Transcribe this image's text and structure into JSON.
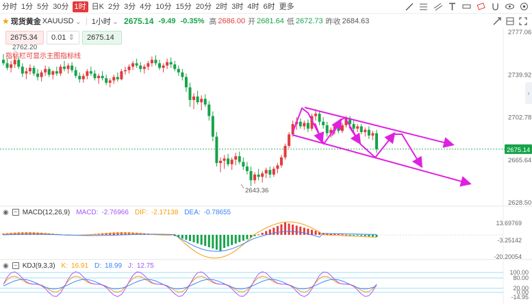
{
  "timeframes": [
    "分时",
    "1分",
    "5分",
    "30分",
    "1时",
    "日K",
    "2分",
    "3分",
    "4分",
    "10分",
    "15分",
    "20分",
    "2时",
    "3时",
    "4时",
    "6时",
    "更多"
  ],
  "active_timeframe": "1时",
  "symbol": {
    "name": "现货黄金",
    "code": "XAUUSD",
    "interval": "1小时",
    "price": "2675.14",
    "change": "-9.49",
    "change_pct": "-0.35%",
    "high_label": "高",
    "high": "2686.00",
    "open_label": "开",
    "open": "2681.64",
    "low_label": "低",
    "low": "2672.73",
    "prev_close_label": "昨收",
    "prev_close": "2684.63"
  },
  "order": {
    "sell": "2675.34",
    "qty": "0.01",
    "buy": "2675.14"
  },
  "hint_text": "指标栏可显示主图指标线",
  "hi_marker": "2762.20",
  "lo_marker": "2643.36",
  "price_axis": [
    "2777.06",
    "2739.92",
    "2702.78",
    "2665.64",
    "2628.50"
  ],
  "current_price_tag": "2675.14",
  "macd": {
    "title": "MACD(12,26,9)",
    "macd_label": "MACD:",
    "macd_val": "-2.76966",
    "dif_label": "DIF:",
    "dif_val": "-2.17138",
    "dea_label": "DEA:",
    "dea_val": "-0.78655",
    "axis": [
      "13.69769",
      "-3.25142",
      "-20.20054"
    ]
  },
  "kdj": {
    "title": "KDJ(9,3,3)",
    "k_label": "K:",
    "k_val": "16.91",
    "d_label": "D:",
    "d_val": "18.99",
    "j_label": "J:",
    "j_val": "12.75",
    "axis": [
      "100.00",
      "80.00",
      "20.00",
      "0.00",
      "-14.95"
    ]
  },
  "colors": {
    "up": "#e33b3b",
    "down": "#16a34a",
    "arrows": "#e020e0",
    "accent": "#e33b3b",
    "star": "#f0a500"
  },
  "chart_data": {
    "type": "candlestick",
    "ohlc": [
      [
        2753,
        2758,
        2748,
        2750
      ],
      [
        2750,
        2754,
        2744,
        2746
      ],
      [
        2746,
        2752,
        2742,
        2749
      ],
      [
        2749,
        2756,
        2746,
        2753
      ],
      [
        2753,
        2755,
        2745,
        2747
      ],
      [
        2747,
        2750,
        2738,
        2741
      ],
      [
        2741,
        2746,
        2736,
        2743
      ],
      [
        2743,
        2749,
        2740,
        2746
      ],
      [
        2746,
        2748,
        2739,
        2741
      ],
      [
        2741,
        2745,
        2735,
        2738
      ],
      [
        2738,
        2744,
        2734,
        2742
      ],
      [
        2742,
        2748,
        2739,
        2745
      ],
      [
        2745,
        2747,
        2738,
        2740
      ],
      [
        2740,
        2744,
        2736,
        2743
      ],
      [
        2743,
        2747,
        2739,
        2741
      ],
      [
        2741,
        2749,
        2739,
        2747
      ],
      [
        2747,
        2752,
        2743,
        2745
      ],
      [
        2745,
        2750,
        2741,
        2748
      ],
      [
        2748,
        2751,
        2742,
        2744
      ],
      [
        2744,
        2747,
        2737,
        2739
      ],
      [
        2739,
        2742,
        2733,
        2736
      ],
      [
        2736,
        2741,
        2733,
        2739
      ],
      [
        2739,
        2745,
        2736,
        2743
      ],
      [
        2743,
        2747,
        2739,
        2741
      ],
      [
        2741,
        2744,
        2735,
        2737
      ],
      [
        2737,
        2741,
        2732,
        2739
      ],
      [
        2739,
        2743,
        2735,
        2737
      ],
      [
        2737,
        2740,
        2731,
        2733
      ],
      [
        2733,
        2737,
        2729,
        2735
      ],
      [
        2735,
        2740,
        2732,
        2738
      ],
      [
        2738,
        2742,
        2734,
        2736
      ],
      [
        2736,
        2745,
        2735,
        2743
      ],
      [
        2743,
        2747,
        2740,
        2744
      ],
      [
        2744,
        2749,
        2741,
        2747
      ],
      [
        2747,
        2752,
        2744,
        2750
      ],
      [
        2750,
        2754,
        2746,
        2748
      ],
      [
        2748,
        2751,
        2742,
        2745
      ],
      [
        2745,
        2749,
        2741,
        2747
      ],
      [
        2747,
        2752,
        2744,
        2750
      ],
      [
        2750,
        2756,
        2747,
        2753
      ],
      [
        2753,
        2757,
        2748,
        2750
      ],
      [
        2750,
        2753,
        2744,
        2746
      ],
      [
        2746,
        2750,
        2742,
        2748
      ],
      [
        2748,
        2754,
        2745,
        2751
      ],
      [
        2751,
        2755,
        2746,
        2749
      ],
      [
        2749,
        2752,
        2743,
        2745
      ],
      [
        2745,
        2748,
        2739,
        2742
      ],
      [
        2742,
        2745,
        2735,
        2738
      ],
      [
        2738,
        2741,
        2725,
        2729
      ],
      [
        2729,
        2733,
        2712,
        2718
      ],
      [
        2718,
        2724,
        2710,
        2721
      ],
      [
        2721,
        2726,
        2714,
        2716
      ],
      [
        2716,
        2722,
        2709,
        2719
      ],
      [
        2719,
        2723,
        2712,
        2714
      ],
      [
        2714,
        2717,
        2700,
        2704
      ],
      [
        2704,
        2708,
        2682,
        2686
      ],
      [
        2686,
        2690,
        2660,
        2663
      ],
      [
        2663,
        2668,
        2655,
        2665
      ],
      [
        2665,
        2670,
        2658,
        2667
      ],
      [
        2667,
        2671,
        2660,
        2662
      ],
      [
        2662,
        2668,
        2657,
        2666
      ],
      [
        2666,
        2672,
        2661,
        2669
      ],
      [
        2669,
        2673,
        2662,
        2664
      ],
      [
        2664,
        2668,
        2657,
        2660
      ],
      [
        2660,
        2664,
        2653,
        2656
      ],
      [
        2656,
        2660,
        2643,
        2648
      ],
      [
        2648,
        2655,
        2645,
        2653
      ],
      [
        2653,
        2658,
        2648,
        2651
      ],
      [
        2651,
        2656,
        2646,
        2654
      ],
      [
        2654,
        2659,
        2650,
        2657
      ],
      [
        2657,
        2660,
        2650,
        2653
      ],
      [
        2653,
        2660,
        2651,
        2658
      ],
      [
        2658,
        2663,
        2654,
        2661
      ],
      [
        2661,
        2670,
        2659,
        2668
      ],
      [
        2668,
        2680,
        2666,
        2678
      ],
      [
        2678,
        2690,
        2676,
        2688
      ],
      [
        2688,
        2700,
        2686,
        2697
      ],
      [
        2697,
        2703,
        2692,
        2699
      ],
      [
        2699,
        2702,
        2693,
        2695
      ],
      [
        2695,
        2700,
        2692,
        2698
      ],
      [
        2698,
        2701,
        2690,
        2693
      ],
      [
        2693,
        2706,
        2691,
        2704
      ],
      [
        2704,
        2710,
        2700,
        2706
      ],
      [
        2706,
        2708,
        2696,
        2699
      ],
      [
        2699,
        2703,
        2693,
        2696
      ],
      [
        2696,
        2699,
        2686,
        2689
      ],
      [
        2689,
        2694,
        2685,
        2692
      ],
      [
        2692,
        2698,
        2688,
        2695
      ],
      [
        2695,
        2698,
        2689,
        2691
      ],
      [
        2691,
        2698,
        2689,
        2696
      ],
      [
        2696,
        2704,
        2694,
        2702
      ],
      [
        2702,
        2704,
        2694,
        2697
      ],
      [
        2697,
        2700,
        2690,
        2693
      ],
      [
        2693,
        2697,
        2690,
        2695
      ],
      [
        2695,
        2697,
        2688,
        2690
      ],
      [
        2690,
        2694,
        2686,
        2692
      ],
      [
        2692,
        2695,
        2684,
        2687
      ],
      [
        2687,
        2691,
        2683,
        2689
      ],
      [
        2689,
        2692,
        2672,
        2675
      ]
    ],
    "price_range": [
      2628.5,
      2777.06
    ]
  }
}
